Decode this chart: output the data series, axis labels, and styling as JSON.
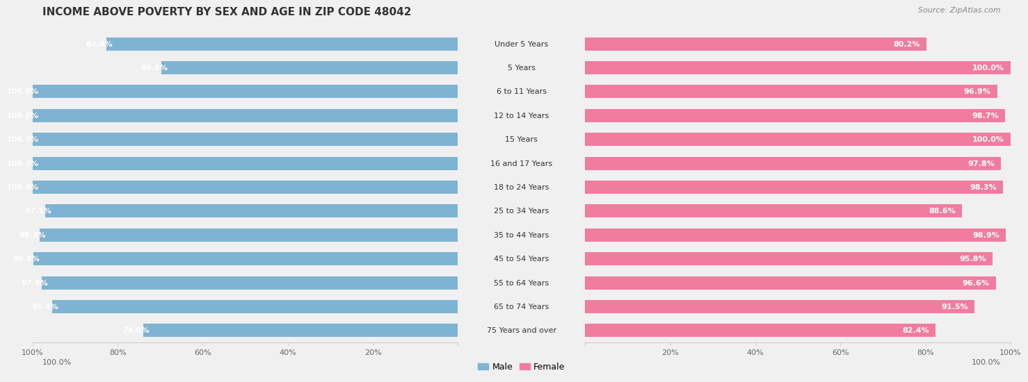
{
  "title": "INCOME ABOVE POVERTY BY SEX AND AGE IN ZIP CODE 48042",
  "source": "Source: ZipAtlas.com",
  "categories": [
    "Under 5 Years",
    "5 Years",
    "6 to 11 Years",
    "12 to 14 Years",
    "15 Years",
    "16 and 17 Years",
    "18 to 24 Years",
    "25 to 34 Years",
    "35 to 44 Years",
    "45 to 54 Years",
    "55 to 64 Years",
    "65 to 74 Years",
    "75 Years and over"
  ],
  "male_values": [
    82.6,
    69.8,
    100.0,
    100.0,
    100.0,
    100.0,
    100.0,
    97.1,
    98.3,
    99.8,
    97.8,
    95.4,
    74.0
  ],
  "female_values": [
    80.2,
    100.0,
    96.9,
    98.7,
    100.0,
    97.8,
    98.3,
    88.6,
    98.9,
    95.8,
    96.6,
    91.5,
    82.4
  ],
  "male_color": "#7fb3d3",
  "female_color": "#f07ca0",
  "male_label": "Male",
  "female_label": "Female",
  "bg_color_odd": "#f0f0f0",
  "bg_color_even": "#ffffff",
  "title_fontsize": 11,
  "label_fontsize": 8,
  "tick_fontsize": 8,
  "source_fontsize": 8,
  "bar_height": 0.55,
  "legend_fontsize": 9
}
